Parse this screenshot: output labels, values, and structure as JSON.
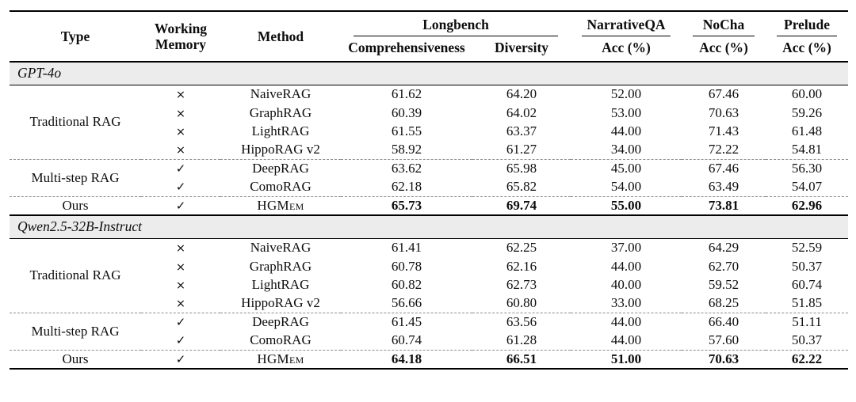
{
  "colors": {
    "rule": "#000000",
    "section_band_bg": "#ececec",
    "dashed_divider": "#8d8d8d",
    "text": "#0d0d0d",
    "background": "#ffffff"
  },
  "icons": {
    "check": "✓",
    "cross": "×"
  },
  "header": {
    "type": "Type",
    "working_memory_line1": "Working",
    "working_memory_line2": "Memory",
    "method": "Method",
    "groups": [
      {
        "label": "Longbench",
        "subs": [
          "Comprehensiveness",
          "Diversity"
        ]
      },
      {
        "label": "NarrativeQA",
        "subs": [
          "Acc (%)"
        ]
      },
      {
        "label": "NoCha",
        "subs": [
          "Acc (%)"
        ]
      },
      {
        "label": "Prelude",
        "subs": [
          "Acc (%)"
        ]
      }
    ]
  },
  "sections": [
    {
      "model": "GPT-4o",
      "groups": [
        {
          "type": "Traditional RAG",
          "rows": [
            {
              "working_memory": "cross",
              "method": "NaiveRAG",
              "values": [
                "61.62",
                "64.20",
                "52.00",
                "67.46",
                "60.00"
              ],
              "bold": false,
              "smallcaps": false
            },
            {
              "working_memory": "cross",
              "method": "GraphRAG",
              "values": [
                "60.39",
                "64.02",
                "53.00",
                "70.63",
                "59.26"
              ],
              "bold": false,
              "smallcaps": false
            },
            {
              "working_memory": "cross",
              "method": "LightRAG",
              "values": [
                "61.55",
                "63.37",
                "44.00",
                "71.43",
                "61.48"
              ],
              "bold": false,
              "smallcaps": false
            },
            {
              "working_memory": "cross",
              "method": "HippoRAG v2",
              "values": [
                "58.92",
                "61.27",
                "34.00",
                "72.22",
                "54.81"
              ],
              "bold": false,
              "smallcaps": false
            }
          ]
        },
        {
          "type": "Multi-step RAG",
          "rows": [
            {
              "working_memory": "check",
              "method": "DeepRAG",
              "values": [
                "63.62",
                "65.98",
                "45.00",
                "67.46",
                "56.30"
              ],
              "bold": false,
              "smallcaps": false
            },
            {
              "working_memory": "check",
              "method": "ComoRAG",
              "values": [
                "62.18",
                "65.82",
                "54.00",
                "63.49",
                "54.07"
              ],
              "bold": false,
              "smallcaps": false
            }
          ]
        },
        {
          "type": "Ours",
          "rows": [
            {
              "working_memory": "check",
              "method": "HGMem",
              "values": [
                "65.73",
                "69.74",
                "55.00",
                "73.81",
                "62.96"
              ],
              "bold": true,
              "smallcaps": true
            }
          ]
        }
      ]
    },
    {
      "model": "Qwen2.5-32B-Instruct",
      "groups": [
        {
          "type": "Traditional RAG",
          "rows": [
            {
              "working_memory": "cross",
              "method": "NaiveRAG",
              "values": [
                "61.41",
                "62.25",
                "37.00",
                "64.29",
                "52.59"
              ],
              "bold": false,
              "smallcaps": false
            },
            {
              "working_memory": "cross",
              "method": "GraphRAG",
              "values": [
                "60.78",
                "62.16",
                "44.00",
                "62.70",
                "50.37"
              ],
              "bold": false,
              "smallcaps": false
            },
            {
              "working_memory": "cross",
              "method": "LightRAG",
              "values": [
                "60.82",
                "62.73",
                "40.00",
                "59.52",
                "60.74"
              ],
              "bold": false,
              "smallcaps": false
            },
            {
              "working_memory": "cross",
              "method": "HippoRAG v2",
              "values": [
                "56.66",
                "60.80",
                "33.00",
                "68.25",
                "51.85"
              ],
              "bold": false,
              "smallcaps": false
            }
          ]
        },
        {
          "type": "Multi-step RAG",
          "rows": [
            {
              "working_memory": "check",
              "method": "DeepRAG",
              "values": [
                "61.45",
                "63.56",
                "44.00",
                "66.40",
                "51.11"
              ],
              "bold": false,
              "smallcaps": false
            },
            {
              "working_memory": "check",
              "method": "ComoRAG",
              "values": [
                "60.74",
                "61.28",
                "44.00",
                "57.60",
                "50.37"
              ],
              "bold": false,
              "smallcaps": false
            }
          ]
        },
        {
          "type": "Ours",
          "rows": [
            {
              "working_memory": "check",
              "method": "HGMem",
              "values": [
                "64.18",
                "66.51",
                "51.00",
                "70.63",
                "62.22"
              ],
              "bold": true,
              "smallcaps": true
            }
          ]
        }
      ]
    }
  ]
}
